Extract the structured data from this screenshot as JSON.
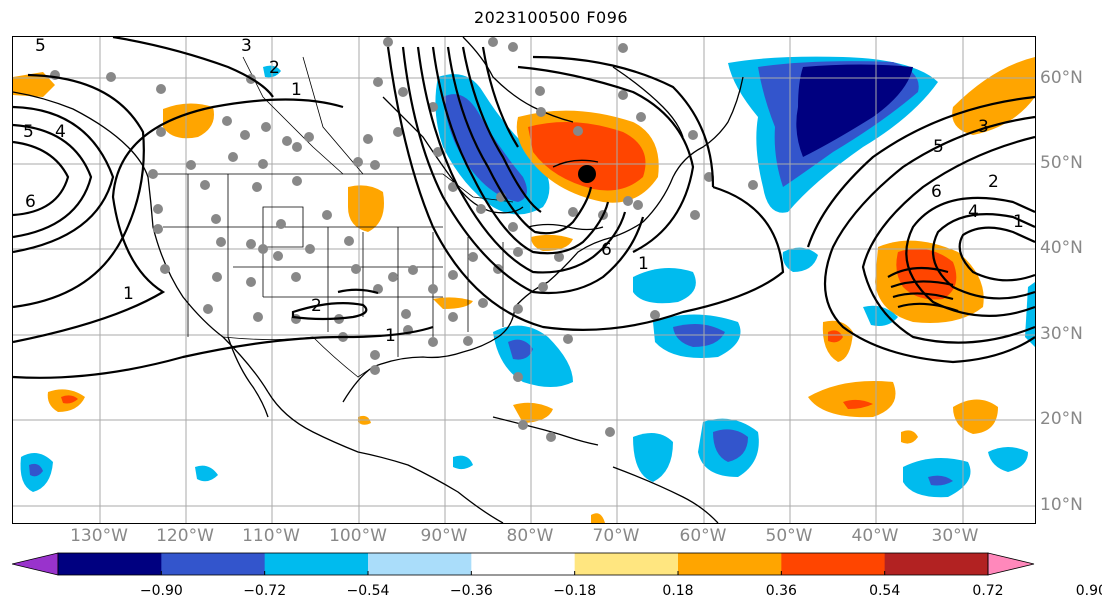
{
  "title": "2023100500 F096",
  "lat_labels": [
    "60°N",
    "50°N",
    "40°N",
    "30°N",
    "20°N",
    "10°N"
  ],
  "lon_labels": [
    "130°W",
    "120°W",
    "110°W",
    "100°W",
    "90°W",
    "80°W",
    "70°W",
    "60°W",
    "50°W",
    "40°W",
    "30°W"
  ],
  "colorbar": {
    "ticks": [
      "−0.90",
      "−0.72",
      "−0.54",
      "−0.36",
      "−0.18",
      "0.18",
      "0.36",
      "0.54",
      "0.72",
      "0.90"
    ],
    "colors": [
      "#9933cc",
      "#000080",
      "#3355cc",
      "#00bbee",
      "#aaddfa",
      "#ffffff",
      "#ffe680",
      "#ffa500",
      "#ff4500",
      "#b22222",
      "#ff88bb"
    ]
  },
  "contour_labels": [
    "5",
    "4",
    "6",
    "3",
    "2",
    "1",
    "1",
    "2",
    "1",
    "6",
    "5",
    "6",
    "5",
    "4",
    "3",
    "2",
    "1",
    "1"
  ],
  "storm_center_marker": "black-dot",
  "station_marker": "gray-dot"
}
